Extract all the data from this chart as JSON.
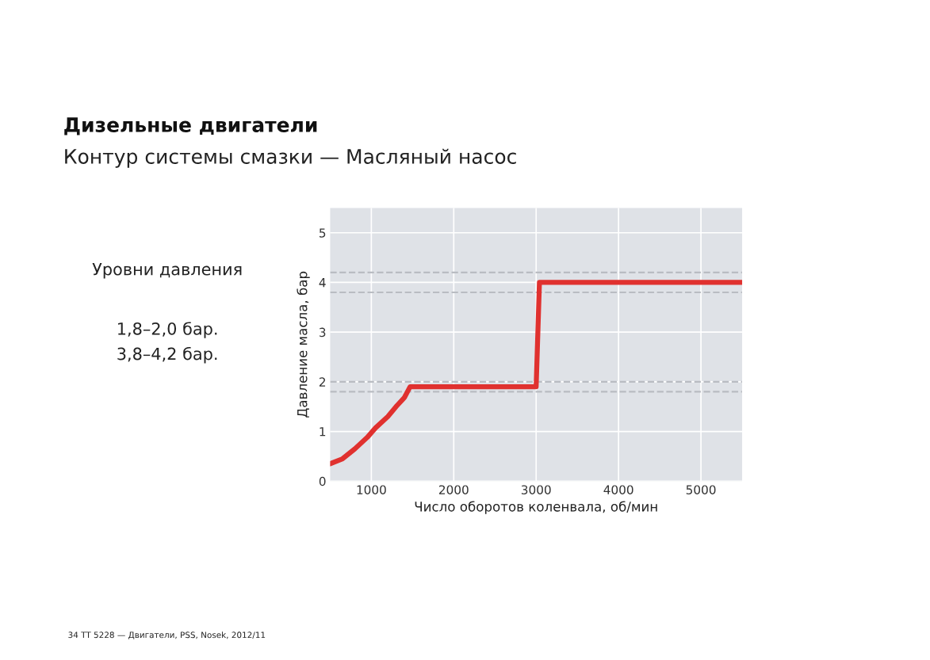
{
  "chart_data": {
    "type": "line",
    "title": "Дизельные двигатели",
    "subtitle": "Контур системы смазки — Масляный насос",
    "xlabel": "Число оборотов коленвала, об/мин",
    "ylabel": "Давление масла, бар",
    "series": [
      {
        "color": "#e0312f",
        "x": [
          500,
          650,
          800,
          950,
          1050,
          1200,
          1300,
          1400,
          1470,
          3000,
          3040,
          5500
        ],
        "values": [
          0.35,
          0.45,
          0.65,
          0.88,
          1.07,
          1.3,
          1.5,
          1.68,
          1.9,
          1.9,
          4.0,
          4.0
        ]
      }
    ],
    "xlim": [
      500,
      5500
    ],
    "ylim": [
      0,
      5.5
    ],
    "xticks": [
      1000,
      2000,
      3000,
      4000,
      5000
    ],
    "yticks": [
      0,
      1,
      2,
      3,
      4,
      5
    ],
    "ref_lines": [
      {
        "axis": "y",
        "value": 1.8,
        "color": "#b9bcc2",
        "line_style": "dashed"
      },
      {
        "axis": "y",
        "value": 2.0,
        "color": "#b9bcc2",
        "line_style": "dashed"
      },
      {
        "axis": "y",
        "value": 3.8,
        "color": "#b9bcc2",
        "line_style": "dashed"
      },
      {
        "axis": "y",
        "value": 4.2,
        "color": "#b9bcc2",
        "line_style": "dashed"
      }
    ],
    "annotations": [
      "Уровни давления",
      "1,8–2,0 бар.",
      "3,8–4,2 бар.",
      "34 TT 5228 — Двигатели, PSS, Nosek, 2012/11"
    ],
    "grid": true,
    "legend": false,
    "marker": "none",
    "line_style": "solid"
  }
}
